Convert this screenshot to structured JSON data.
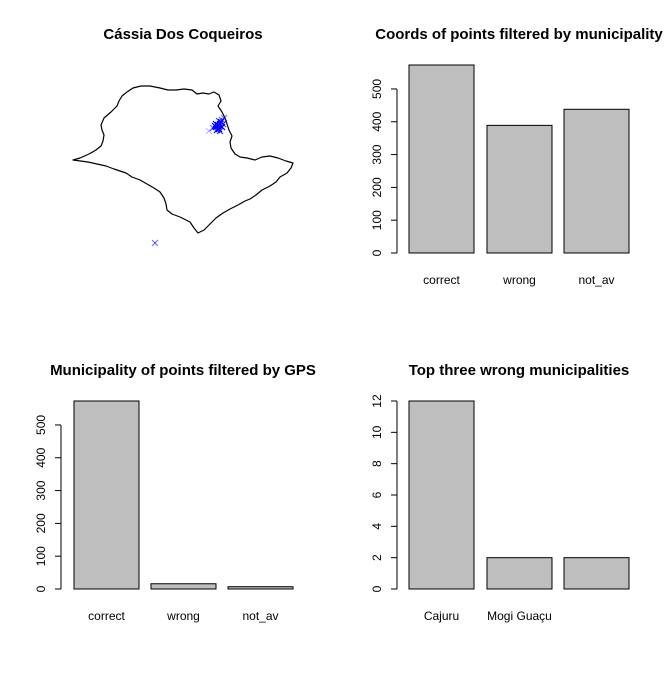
{
  "chart_data": [
    {
      "type": "scatter",
      "title": "Cássia Dos Coqueiros",
      "map": "São Paulo state outline",
      "marker": "x",
      "marker_color": "#0000ff"
    },
    {
      "type": "bar",
      "title": "Coords of points filtered by municipality",
      "categories": [
        "correct",
        "wrong",
        "not_av"
      ],
      "values": [
        573,
        389,
        438
      ],
      "yticks": [
        0,
        100,
        200,
        300,
        400,
        500
      ],
      "ylim": [
        0,
        573
      ]
    },
    {
      "type": "bar",
      "title": "Municipality of points filtered by GPS",
      "categories": [
        "correct",
        "wrong",
        "not_av"
      ],
      "values": [
        573,
        16,
        7
      ],
      "yticks": [
        0,
        100,
        200,
        300,
        400,
        500
      ],
      "ylim": [
        0,
        573
      ]
    },
    {
      "type": "bar",
      "title": "Top three wrong municipalities",
      "categories": [
        "Cajuru",
        "Mogi Guaçu",
        ""
      ],
      "values": [
        12,
        2,
        2
      ],
      "yticks": [
        0,
        2,
        4,
        6,
        8,
        10,
        12
      ],
      "ylim": [
        0,
        12
      ]
    }
  ],
  "colors": {
    "bar_fill": "#bebebe",
    "bar_stroke": "#000000",
    "points": "#0000ff"
  }
}
